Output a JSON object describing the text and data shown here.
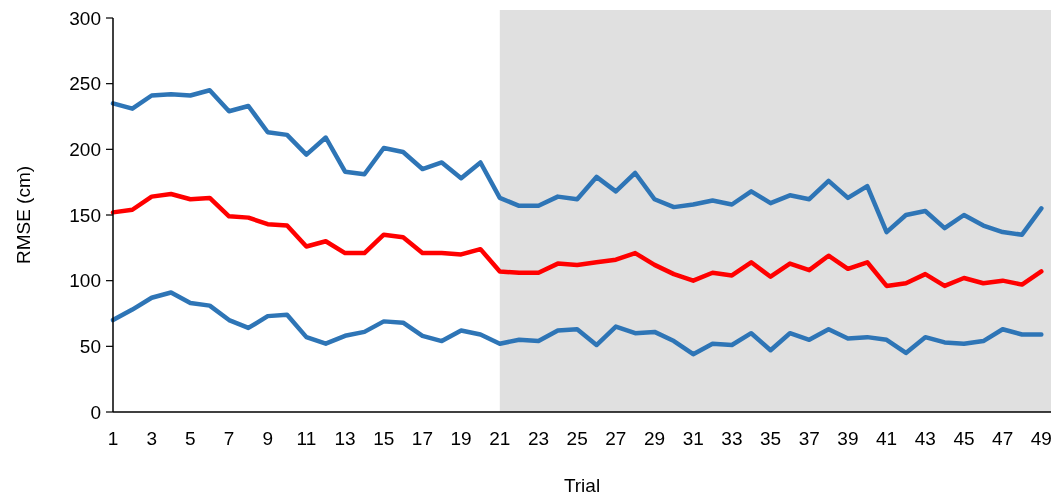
{
  "chart_data": {
    "type": "line",
    "xlabel": "Trial",
    "ylabel": "RMSE (cm)",
    "x": [
      1,
      2,
      3,
      4,
      5,
      6,
      7,
      8,
      9,
      10,
      11,
      12,
      13,
      14,
      15,
      16,
      17,
      18,
      19,
      20,
      21,
      22,
      23,
      24,
      25,
      26,
      27,
      28,
      29,
      30,
      31,
      32,
      33,
      34,
      35,
      36,
      37,
      38,
      39,
      40,
      41,
      42,
      43,
      44,
      45,
      46,
      47,
      48,
      49
    ],
    "xlim": [
      1,
      49.5
    ],
    "xticks": [
      1,
      3,
      5,
      7,
      9,
      11,
      13,
      15,
      17,
      19,
      21,
      23,
      25,
      27,
      29,
      31,
      33,
      35,
      37,
      39,
      41,
      43,
      45,
      47,
      49
    ],
    "ylim": [
      0,
      300
    ],
    "yticks": [
      0,
      50,
      100,
      150,
      200,
      250,
      300
    ],
    "grid": false,
    "marker": "none",
    "line_style": "solid",
    "series": [
      {
        "color": "#2e75b6",
        "values": [
          235,
          231,
          241,
          242,
          241,
          245,
          229,
          233,
          213,
          211,
          196,
          209,
          183,
          181,
          201,
          198,
          185,
          190,
          178,
          190,
          163,
          157,
          157,
          164,
          162,
          179,
          168,
          182,
          162,
          156,
          158,
          161,
          158,
          168,
          159,
          165,
          162,
          176,
          163,
          172,
          137,
          150,
          153,
          140,
          150,
          142,
          137,
          135,
          155
        ]
      },
      {
        "color": "#ff0000",
        "values": [
          152,
          154,
          164,
          166,
          162,
          163,
          149,
          148,
          143,
          142,
          126,
          130,
          121,
          121,
          135,
          133,
          121,
          121,
          120,
          124,
          107,
          106,
          106,
          113,
          112,
          114,
          116,
          121,
          112,
          105,
          100,
          106,
          104,
          114,
          103,
          113,
          108,
          119,
          109,
          114,
          96,
          98,
          105,
          96,
          102,
          98,
          100,
          97,
          107
        ]
      },
      {
        "color": "#2e75b6",
        "values": [
          70,
          78,
          87,
          91,
          83,
          81,
          70,
          64,
          73,
          74,
          57,
          52,
          58,
          61,
          69,
          68,
          58,
          54,
          62,
          59,
          52,
          55,
          54,
          62,
          63,
          51,
          65,
          60,
          61,
          54,
          44,
          52,
          51,
          60,
          47,
          60,
          55,
          63,
          56,
          57,
          55,
          45,
          57,
          53,
          52,
          54,
          63,
          59,
          59
        ]
      }
    ],
    "bands": [
      {
        "axis": "x",
        "from": 21,
        "to": 49.5,
        "color": "#e0e0e0"
      }
    ]
  }
}
